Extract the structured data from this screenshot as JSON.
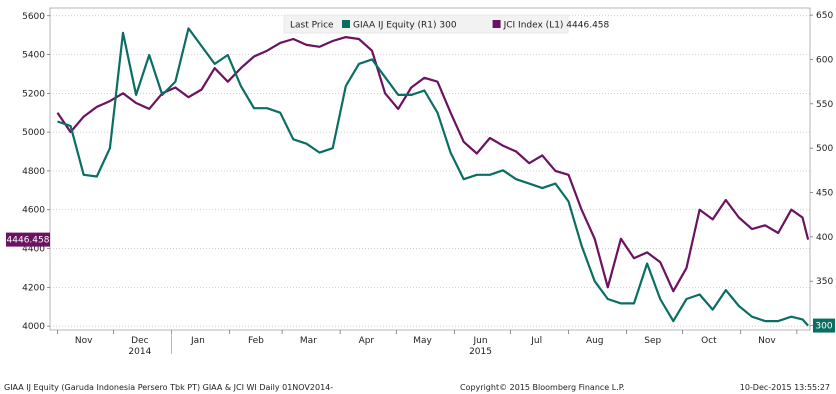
{
  "chart_data": {
    "type": "line",
    "legend": {
      "title": "Last Price",
      "placement": "top-center",
      "entries": [
        {
          "series": "GIAA",
          "text": "GIAA IJ Equity  (R1) 300"
        },
        {
          "series": "JCI",
          "text": "JCI Index  (L1) 4446.458"
        }
      ]
    },
    "x_axis": {
      "type": "time",
      "range": [
        "2014-10-28",
        "2015-12-08"
      ],
      "month_labels": [
        {
          "label": "Nov",
          "date": "2014-11-15"
        },
        {
          "label": "Dec",
          "date": "2014-12-15"
        },
        {
          "label": "Jan",
          "date": "2015-01-15"
        },
        {
          "label": "Feb",
          "date": "2015-02-15"
        },
        {
          "label": "Mar",
          "date": "2015-03-15"
        },
        {
          "label": "Apr",
          "date": "2015-04-15"
        },
        {
          "label": "May",
          "date": "2015-05-15"
        },
        {
          "label": "Jun",
          "date": "2015-06-15"
        },
        {
          "label": "Jul",
          "date": "2015-07-15"
        },
        {
          "label": "Aug",
          "date": "2015-08-15"
        },
        {
          "label": "Sep",
          "date": "2015-09-15"
        },
        {
          "label": "Oct",
          "date": "2015-10-15"
        },
        {
          "label": "Nov",
          "date": "2015-11-15"
        }
      ],
      "year_labels": [
        {
          "label": "2014",
          "date": "2014-12-15"
        },
        {
          "label": "2015",
          "date": "2015-06-15"
        }
      ]
    },
    "y_left": {
      "range": [
        3980,
        5640
      ],
      "ticks": [
        4000,
        4200,
        4400,
        4600,
        4800,
        5000,
        5200,
        5400,
        5600
      ]
    },
    "y_right": {
      "range": [
        295,
        658
      ],
      "ticks": [
        300,
        350,
        400,
        450,
        500,
        550,
        600,
        650
      ]
    },
    "last_value_labels": {
      "left": "4446.458",
      "right": "300"
    },
    "grid": {
      "horizontal": true,
      "vertical": false,
      "style": "dotted"
    },
    "colors": {
      "GIAA": "#0b6e63",
      "JCI": "#6b1260"
    },
    "series": [
      {
        "id": "JCI",
        "axis": "left",
        "points": [
          [
            "2014-11-01",
            5100
          ],
          [
            "2014-11-08",
            5000
          ],
          [
            "2014-11-15",
            5080
          ],
          [
            "2014-11-22",
            5130
          ],
          [
            "2014-11-29",
            5160
          ],
          [
            "2014-12-06",
            5200
          ],
          [
            "2014-12-13",
            5150
          ],
          [
            "2014-12-20",
            5120
          ],
          [
            "2014-12-27",
            5200
          ],
          [
            "2015-01-03",
            5230
          ],
          [
            "2015-01-10",
            5180
          ],
          [
            "2015-01-17",
            5220
          ],
          [
            "2015-01-24",
            5330
          ],
          [
            "2015-01-31",
            5260
          ],
          [
            "2015-02-07",
            5330
          ],
          [
            "2015-02-14",
            5390
          ],
          [
            "2015-02-21",
            5420
          ],
          [
            "2015-02-28",
            5460
          ],
          [
            "2015-03-07",
            5480
          ],
          [
            "2015-03-14",
            5450
          ],
          [
            "2015-03-21",
            5440
          ],
          [
            "2015-03-28",
            5470
          ],
          [
            "2015-04-04",
            5490
          ],
          [
            "2015-04-11",
            5480
          ],
          [
            "2015-04-18",
            5420
          ],
          [
            "2015-04-25",
            5200
          ],
          [
            "2015-05-02",
            5120
          ],
          [
            "2015-05-09",
            5230
          ],
          [
            "2015-05-16",
            5280
          ],
          [
            "2015-05-23",
            5260
          ],
          [
            "2015-05-30",
            5100
          ],
          [
            "2015-06-06",
            4950
          ],
          [
            "2015-06-13",
            4890
          ],
          [
            "2015-06-20",
            4970
          ],
          [
            "2015-06-27",
            4930
          ],
          [
            "2015-07-04",
            4900
          ],
          [
            "2015-07-11",
            4840
          ],
          [
            "2015-07-18",
            4880
          ],
          [
            "2015-07-25",
            4800
          ],
          [
            "2015-08-01",
            4780
          ],
          [
            "2015-08-08",
            4600
          ],
          [
            "2015-08-15",
            4450
          ],
          [
            "2015-08-22",
            4200
          ],
          [
            "2015-08-29",
            4450
          ],
          [
            "2015-09-05",
            4350
          ],
          [
            "2015-09-12",
            4380
          ],
          [
            "2015-09-19",
            4330
          ],
          [
            "2015-09-26",
            4180
          ],
          [
            "2015-10-03",
            4300
          ],
          [
            "2015-10-10",
            4600
          ],
          [
            "2015-10-17",
            4550
          ],
          [
            "2015-10-24",
            4650
          ],
          [
            "2015-10-31",
            4560
          ],
          [
            "2015-11-07",
            4500
          ],
          [
            "2015-11-14",
            4520
          ],
          [
            "2015-11-21",
            4480
          ],
          [
            "2015-11-28",
            4600
          ],
          [
            "2015-12-04",
            4560
          ],
          [
            "2015-12-07",
            4446
          ]
        ]
      },
      {
        "id": "GIAA",
        "axis": "right",
        "points": [
          [
            "2014-11-01",
            530
          ],
          [
            "2014-11-08",
            525
          ],
          [
            "2014-11-15",
            470
          ],
          [
            "2014-11-22",
            468
          ],
          [
            "2014-11-29",
            500
          ],
          [
            "2014-12-06",
            630
          ],
          [
            "2014-12-13",
            560
          ],
          [
            "2014-12-20",
            605
          ],
          [
            "2014-12-27",
            560
          ],
          [
            "2015-01-03",
            575
          ],
          [
            "2015-01-10",
            635
          ],
          [
            "2015-01-17",
            615
          ],
          [
            "2015-01-24",
            595
          ],
          [
            "2015-01-31",
            605
          ],
          [
            "2015-02-07",
            570
          ],
          [
            "2015-02-14",
            545
          ],
          [
            "2015-02-21",
            545
          ],
          [
            "2015-02-28",
            540
          ],
          [
            "2015-03-07",
            510
          ],
          [
            "2015-03-14",
            505
          ],
          [
            "2015-03-21",
            495
          ],
          [
            "2015-03-28",
            500
          ],
          [
            "2015-04-04",
            570
          ],
          [
            "2015-04-11",
            595
          ],
          [
            "2015-04-18",
            600
          ],
          [
            "2015-04-25",
            580
          ],
          [
            "2015-05-02",
            560
          ],
          [
            "2015-05-09",
            560
          ],
          [
            "2015-05-16",
            565
          ],
          [
            "2015-05-23",
            540
          ],
          [
            "2015-05-30",
            495
          ],
          [
            "2015-06-06",
            465
          ],
          [
            "2015-06-13",
            470
          ],
          [
            "2015-06-20",
            470
          ],
          [
            "2015-06-27",
            475
          ],
          [
            "2015-07-04",
            465
          ],
          [
            "2015-07-11",
            460
          ],
          [
            "2015-07-18",
            455
          ],
          [
            "2015-07-25",
            460
          ],
          [
            "2015-08-01",
            440
          ],
          [
            "2015-08-08",
            390
          ],
          [
            "2015-08-15",
            350
          ],
          [
            "2015-08-22",
            330
          ],
          [
            "2015-08-29",
            325
          ],
          [
            "2015-09-05",
            325
          ],
          [
            "2015-09-12",
            370
          ],
          [
            "2015-09-19",
            330
          ],
          [
            "2015-09-26",
            305
          ],
          [
            "2015-10-03",
            330
          ],
          [
            "2015-10-10",
            335
          ],
          [
            "2015-10-17",
            318
          ],
          [
            "2015-10-24",
            340
          ],
          [
            "2015-10-31",
            322
          ],
          [
            "2015-11-07",
            310
          ],
          [
            "2015-11-14",
            305
          ],
          [
            "2015-11-21",
            305
          ],
          [
            "2015-11-28",
            310
          ],
          [
            "2015-12-04",
            307
          ],
          [
            "2015-12-07",
            300
          ]
        ]
      }
    ]
  },
  "footer": {
    "left": "GIAA IJ Equity (Garuda Indonesia Persero Tbk PT) GIAA & JCI WI  Daily 01NOV2014-",
    "center": "Copyright© 2015 Bloomberg Finance L.P.",
    "right": "10-Dec-2015 13:55:27"
  }
}
